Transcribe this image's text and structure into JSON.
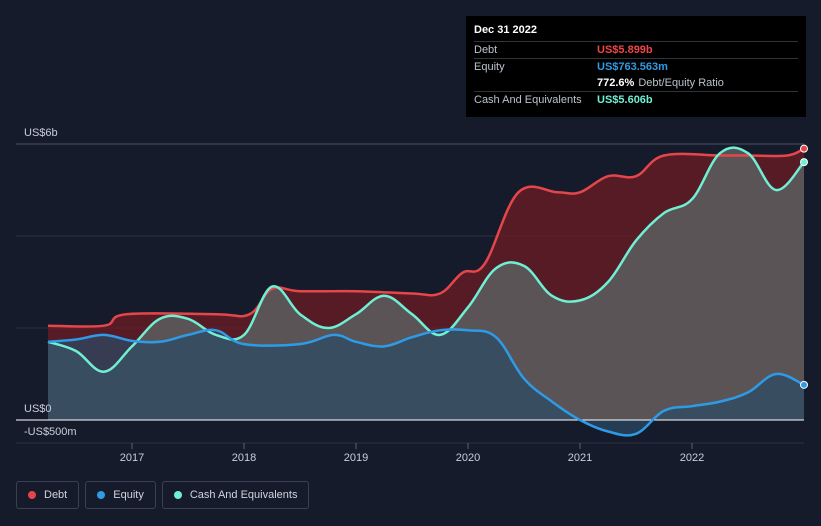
{
  "tooltip": {
    "date": "Dec 31 2022",
    "rows": [
      {
        "label": "Debt",
        "value": "US$5.899b",
        "color": "#f0454a"
      },
      {
        "label": "Equity",
        "value": "US$763.563m",
        "color": "#2e9be6"
      },
      {
        "label": "Cash And Equivalents",
        "value": "US$5.606b",
        "color": "#6ff0d4"
      }
    ],
    "ratio_value": "772.6%",
    "ratio_label": "Debt/Equity Ratio"
  },
  "legend": [
    {
      "label": "Debt",
      "color": "#e5464b"
    },
    {
      "label": "Equity",
      "color": "#2e9be6"
    },
    {
      "label": "Cash And Equivalents",
      "color": "#6ff0d4"
    }
  ],
  "chart_data": {
    "type": "area",
    "title": "",
    "xlabel": "",
    "ylabel": "",
    "y_axis_labels": {
      "top": "US$6b",
      "zero": "US$0",
      "bottom": "-US$500m"
    },
    "ylim": [
      -500,
      6000
    ],
    "x_ticks": [
      "2017",
      "2018",
      "2019",
      "2020",
      "2021",
      "2022"
    ],
    "grid": true,
    "legend_position": "bottom-left",
    "series": [
      {
        "name": "Debt",
        "color": "#e5464b",
        "points": [
          [
            2016.25,
            2050
          ],
          [
            2016.75,
            2050
          ],
          [
            2016.95,
            2300
          ],
          [
            2017.75,
            2300
          ],
          [
            2018.05,
            2300
          ],
          [
            2018.25,
            2850
          ],
          [
            2018.5,
            2800
          ],
          [
            2019.0,
            2800
          ],
          [
            2019.5,
            2750
          ],
          [
            2019.75,
            2750
          ],
          [
            2019.95,
            3200
          ],
          [
            2020.15,
            3400
          ],
          [
            2020.45,
            4950
          ],
          [
            2020.8,
            4950
          ],
          [
            2021.0,
            4950
          ],
          [
            2021.25,
            5300
          ],
          [
            2021.5,
            5300
          ],
          [
            2021.75,
            5750
          ],
          [
            2022.25,
            5750
          ],
          [
            2022.5,
            5750
          ],
          [
            2022.85,
            5750
          ],
          [
            2023.0,
            5899
          ]
        ]
      },
      {
        "name": "Equity",
        "color": "#2e9be6",
        "points": [
          [
            2016.25,
            1700
          ],
          [
            2016.5,
            1750
          ],
          [
            2016.75,
            1850
          ],
          [
            2017.0,
            1720
          ],
          [
            2017.25,
            1700
          ],
          [
            2017.5,
            1850
          ],
          [
            2017.75,
            1950
          ],
          [
            2018.0,
            1650
          ],
          [
            2018.5,
            1650
          ],
          [
            2018.8,
            1850
          ],
          [
            2019.0,
            1700
          ],
          [
            2019.25,
            1600
          ],
          [
            2019.5,
            1800
          ],
          [
            2019.75,
            1950
          ],
          [
            2020.0,
            1950
          ],
          [
            2020.25,
            1800
          ],
          [
            2020.5,
            900
          ],
          [
            2020.75,
            400
          ],
          [
            2021.0,
            0
          ],
          [
            2021.25,
            -250
          ],
          [
            2021.5,
            -300
          ],
          [
            2021.75,
            200
          ],
          [
            2022.0,
            300
          ],
          [
            2022.25,
            400
          ],
          [
            2022.5,
            600
          ],
          [
            2022.75,
            1000
          ],
          [
            2023.0,
            764
          ]
        ]
      },
      {
        "name": "Cash And Equivalents",
        "color": "#6ff0d4",
        "points": [
          [
            2016.25,
            1700
          ],
          [
            2016.5,
            1500
          ],
          [
            2016.75,
            1050
          ],
          [
            2017.0,
            1600
          ],
          [
            2017.25,
            2200
          ],
          [
            2017.5,
            2200
          ],
          [
            2017.75,
            1850
          ],
          [
            2018.0,
            1850
          ],
          [
            2018.25,
            2900
          ],
          [
            2018.5,
            2300
          ],
          [
            2018.75,
            2000
          ],
          [
            2019.0,
            2300
          ],
          [
            2019.25,
            2700
          ],
          [
            2019.5,
            2300
          ],
          [
            2019.75,
            1850
          ],
          [
            2020.0,
            2450
          ],
          [
            2020.25,
            3300
          ],
          [
            2020.5,
            3350
          ],
          [
            2020.75,
            2700
          ],
          [
            2021.0,
            2600
          ],
          [
            2021.25,
            3000
          ],
          [
            2021.5,
            3900
          ],
          [
            2021.75,
            4500
          ],
          [
            2022.0,
            4800
          ],
          [
            2022.25,
            5800
          ],
          [
            2022.5,
            5800
          ],
          [
            2022.75,
            5000
          ],
          [
            2023.0,
            5606
          ]
        ]
      }
    ]
  }
}
